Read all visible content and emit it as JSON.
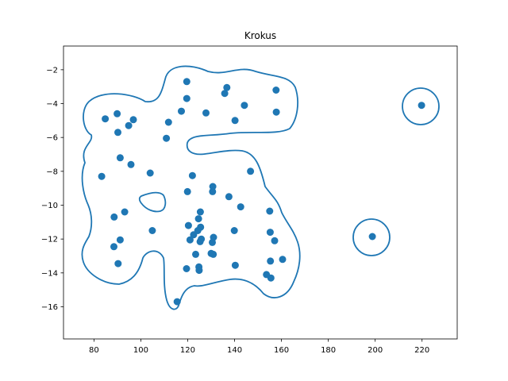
{
  "chart_data": {
    "type": "scatter",
    "title": "Krokus",
    "xlabel": "",
    "ylabel": "",
    "xlim": [
      67,
      235
    ],
    "ylim": [
      -17.9,
      -0.6
    ],
    "xticks": [
      80,
      100,
      120,
      140,
      160,
      180,
      200,
      220
    ],
    "yticks": [
      -2,
      -4,
      -6,
      -8,
      -10,
      -12,
      -14,
      -16
    ],
    "grid": false,
    "colors": {
      "marker": "#1f77b4",
      "outline": "#1f77b4",
      "frame": "#000000"
    },
    "points": [
      [
        84.8,
        -4.9
      ],
      [
        89.9,
        -4.6
      ],
      [
        90.2,
        -5.7
      ],
      [
        94.8,
        -5.3
      ],
      [
        96.8,
        -4.95
      ],
      [
        83.3,
        -8.3
      ],
      [
        91.2,
        -7.2
      ],
      [
        95.8,
        -7.6
      ],
      [
        104,
        -8.1
      ],
      [
        88.6,
        -10.7
      ],
      [
        93.1,
        -10.4
      ],
      [
        91.2,
        -12.05
      ],
      [
        88.5,
        -12.45
      ],
      [
        90.3,
        -13.45
      ],
      [
        104.9,
        -11.5
      ],
      [
        110.9,
        -6.05
      ],
      [
        111.8,
        -5.1
      ],
      [
        117.3,
        -4.45
      ],
      [
        119.6,
        -2.7
      ],
      [
        119.6,
        -3.7
      ],
      [
        127.8,
        -4.55
      ],
      [
        136.7,
        -3.05
      ],
      [
        135.8,
        -3.4
      ],
      [
        144.2,
        -4.1
      ],
      [
        140.2,
        -5.0
      ],
      [
        157.7,
        -3.2
      ],
      [
        157.8,
        -4.5
      ],
      [
        146.8,
        -8.0
      ],
      [
        122.0,
        -8.25
      ],
      [
        119.9,
        -9.2
      ],
      [
        130.7,
        -8.9
      ],
      [
        130.6,
        -9.2
      ],
      [
        137.6,
        -9.5
      ],
      [
        142.6,
        -10.1
      ],
      [
        124.6,
        -10.8
      ],
      [
        125.4,
        -10.4
      ],
      [
        125.5,
        -11.3
      ],
      [
        124.3,
        -11.5
      ],
      [
        122.5,
        -11.75
      ],
      [
        121.0,
        -12.05
      ],
      [
        120.3,
        -11.2
      ],
      [
        125.3,
        -12.15
      ],
      [
        125.8,
        -12.0
      ],
      [
        130.5,
        -12.2
      ],
      [
        131.0,
        -11.9
      ],
      [
        139.9,
        -11.5
      ],
      [
        123.4,
        -12.9
      ],
      [
        130.0,
        -12.85
      ],
      [
        130.9,
        -12.9
      ],
      [
        119.5,
        -13.75
      ],
      [
        124.8,
        -13.65
      ],
      [
        124.9,
        -13.85
      ],
      [
        140.3,
        -13.55
      ],
      [
        155.0,
        -10.35
      ],
      [
        155.2,
        -11.6
      ],
      [
        157.1,
        -12.1
      ],
      [
        155.3,
        -13.3
      ],
      [
        160.5,
        -13.2
      ],
      [
        153.6,
        -14.1
      ],
      [
        155.5,
        -14.3
      ],
      [
        115.5,
        -15.7
      ],
      [
        198.8,
        -11.85
      ],
      [
        219.8,
        -4.1
      ]
    ]
  }
}
